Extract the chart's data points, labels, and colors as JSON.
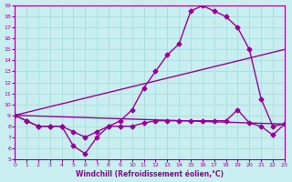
{
  "xlabel": "Windchill (Refroidissement éolien,°C)",
  "background_color": "#c8eef0",
  "grid_color": "#aadddd",
  "line_color": "#990099",
  "xlim": [
    0,
    23
  ],
  "ylim": [
    5,
    19
  ],
  "xticks": [
    0,
    1,
    2,
    3,
    4,
    5,
    6,
    7,
    8,
    9,
    10,
    11,
    12,
    13,
    14,
    15,
    16,
    17,
    18,
    19,
    20,
    21,
    22,
    23
  ],
  "yticks": [
    5,
    6,
    7,
    8,
    9,
    10,
    11,
    12,
    13,
    14,
    15,
    16,
    17,
    18,
    19
  ],
  "curve1_x": [
    0,
    1,
    2,
    3,
    4,
    5,
    6,
    7,
    8,
    9,
    10,
    11,
    12,
    13,
    14,
    15,
    16,
    17,
    18,
    19,
    20,
    21,
    22,
    23
  ],
  "curve1_y": [
    9.0,
    8.5,
    8.0,
    8.0,
    8.0,
    7.5,
    7.0,
    7.5,
    8.0,
    8.0,
    8.0,
    8.3,
    8.5,
    8.5,
    8.5,
    8.5,
    8.5,
    8.5,
    8.5,
    9.5,
    8.3,
    8.0,
    7.2,
    8.2
  ],
  "curve2_x": [
    0,
    1,
    2,
    3,
    4,
    5,
    6,
    7,
    8,
    9,
    10,
    11,
    12,
    13,
    14,
    15,
    16,
    17,
    18,
    19,
    20,
    21,
    22,
    23
  ],
  "curve2_y": [
    9.0,
    8.5,
    8.0,
    8.0,
    8.0,
    6.2,
    5.5,
    7.0,
    8.0,
    8.5,
    9.5,
    11.5,
    13.0,
    14.5,
    15.5,
    18.5,
    19.0,
    18.5,
    18.0,
    17.0,
    15.0,
    10.5,
    8.0,
    8.2
  ],
  "line1_x": [
    0,
    23
  ],
  "line1_y": [
    9.0,
    8.2
  ],
  "line2_x": [
    0,
    23
  ],
  "line2_y": [
    9.0,
    15.0
  ],
  "marker": "D",
  "marker_size": 2.5,
  "line_width": 1.0
}
